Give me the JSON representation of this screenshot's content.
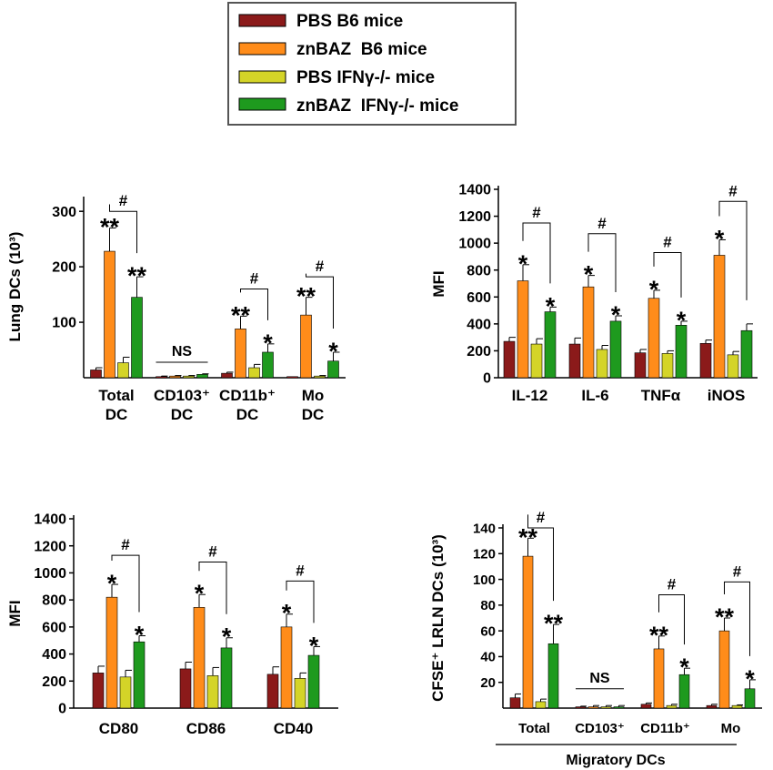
{
  "legend": {
    "entries": [
      {
        "label": "PBS B6 mice",
        "color": "#8b1a1a"
      },
      {
        "label": "znBAZ  B6 mice",
        "color": "#ff8c1a"
      },
      {
        "label": "PBS IFNγ-/- mice",
        "color": "#d4d428"
      },
      {
        "label": "znBAZ  IFNγ-/- mice",
        "color": "#1e9a1e"
      }
    ]
  },
  "chart_data": [
    {
      "id": "A",
      "type": "bar",
      "ylabel": "Lung DCs (10³)",
      "ylim": [
        0,
        320
      ],
      "yticks": [
        100,
        200,
        300
      ],
      "categories": [
        "Total DC",
        "CD103⁺ DC",
        "CD11b⁺ DC",
        "Mo DC"
      ],
      "category_lines": [
        [
          "Total",
          "DC"
        ],
        [
          "CD103⁺",
          "DC"
        ],
        [
          "CD11b⁺",
          "DC"
        ],
        [
          "Mo",
          "DC"
        ]
      ],
      "series": [
        {
          "name": "PBS B6 mice",
          "values": [
            14,
            2,
            8,
            2
          ],
          "errors": [
            4,
            1,
            2,
            0
          ]
        },
        {
          "name": "znBAZ  B6 mice",
          "values": [
            228,
            3,
            88,
            113
          ],
          "errors": [
            42,
            1,
            23,
            32
          ]
        },
        {
          "name": "PBS IFNγ-/- mice",
          "values": [
            27,
            3,
            18,
            3
          ],
          "errors": [
            10,
            1,
            6,
            1
          ]
        },
        {
          "name": "znBAZ  IFNγ-/- mice",
          "values": [
            145,
            6,
            46,
            30
          ],
          "errors": [
            37,
            1,
            15,
            16
          ]
        }
      ],
      "significance": [
        {
          "series": 1,
          "category": 0,
          "mark": "**"
        },
        {
          "series": 3,
          "category": 0,
          "mark": "**"
        },
        {
          "series": 1,
          "category": 2,
          "mark": "**"
        },
        {
          "series": 3,
          "category": 2,
          "mark": "*"
        },
        {
          "series": 1,
          "category": 3,
          "mark": "**"
        },
        {
          "series": 3,
          "category": 3,
          "mark": "*"
        }
      ],
      "brackets": [
        {
          "category": 0,
          "from": 1,
          "to": 3,
          "level": 300,
          "mark": "#"
        },
        {
          "category": 2,
          "from": 1,
          "to": 3,
          "level": 160,
          "mark": "#"
        },
        {
          "category": 3,
          "from": 1,
          "to": 3,
          "level": 182,
          "mark": "#"
        }
      ],
      "ns": [
        {
          "category": 1,
          "level": 28,
          "mark": "NS"
        }
      ]
    },
    {
      "id": "B",
      "type": "bar",
      "ylabel": "MFI",
      "ylim": [
        0,
        1400
      ],
      "yticks": [
        0,
        200,
        400,
        600,
        800,
        1000,
        1200,
        1400
      ],
      "categories": [
        "IL-12",
        "IL-6",
        "TNFα",
        "iNOS"
      ],
      "category_lines": [
        [
          "IL-12"
        ],
        [
          "IL-6"
        ],
        [
          "TNFα"
        ],
        [
          "iNOS"
        ]
      ],
      "series": [
        {
          "name": "PBS B6 mice",
          "values": [
            270,
            250,
            185,
            255
          ],
          "errors": [
            30,
            45,
            25,
            25
          ]
        },
        {
          "name": "znBAZ  B6 mice",
          "values": [
            720,
            675,
            590,
            910
          ],
          "errors": [
            120,
            85,
            60,
            115
          ]
        },
        {
          "name": "PBS IFNγ-/- mice",
          "values": [
            250,
            210,
            180,
            170
          ],
          "errors": [
            40,
            30,
            20,
            25
          ]
        },
        {
          "name": "znBAZ  IFNγ-/- mice",
          "values": [
            490,
            420,
            390,
            350
          ],
          "errors": [
            35,
            40,
            30,
            50
          ]
        }
      ],
      "significance": [
        {
          "series": 1,
          "category": 0,
          "mark": "*"
        },
        {
          "series": 3,
          "category": 0,
          "mark": "*"
        },
        {
          "series": 1,
          "category": 1,
          "mark": "*"
        },
        {
          "series": 3,
          "category": 1,
          "mark": "*"
        },
        {
          "series": 1,
          "category": 2,
          "mark": "*"
        },
        {
          "series": 3,
          "category": 2,
          "mark": "*"
        },
        {
          "series": 1,
          "category": 3,
          "mark": "*"
        }
      ],
      "brackets": [
        {
          "category": 0,
          "from": 1,
          "to": 3,
          "level": 1150,
          "mark": "#"
        },
        {
          "category": 1,
          "from": 1,
          "to": 3,
          "level": 1070,
          "mark": "#"
        },
        {
          "category": 2,
          "from": 1,
          "to": 3,
          "level": 930,
          "mark": "#"
        },
        {
          "category": 3,
          "from": 1,
          "to": 3,
          "level": 1310,
          "mark": "#"
        }
      ]
    },
    {
      "id": "C",
      "type": "bar",
      "ylabel": "MFI",
      "ylim": [
        0,
        1400
      ],
      "yticks": [
        0,
        200,
        400,
        600,
        800,
        1000,
        1200,
        1400
      ],
      "categories": [
        "CD80",
        "CD86",
        "CD40"
      ],
      "category_lines": [
        [
          "CD80"
        ],
        [
          "CD86"
        ],
        [
          "CD40"
        ]
      ],
      "series": [
        {
          "name": "PBS B6 mice",
          "values": [
            260,
            290,
            250
          ],
          "errors": [
            50,
            50,
            55
          ]
        },
        {
          "name": "znBAZ  B6 mice",
          "values": [
            820,
            745,
            600
          ],
          "errors": [
            95,
            95,
            95
          ]
        },
        {
          "name": "PBS IFNγ-/- mice",
          "values": [
            230,
            240,
            220
          ],
          "errors": [
            50,
            60,
            40
          ]
        },
        {
          "name": "znBAZ  IFNγ-/- mice",
          "values": [
            490,
            445,
            390
          ],
          "errors": [
            45,
            75,
            65
          ]
        }
      ],
      "significance": [
        {
          "series": 1,
          "category": 0,
          "mark": "*"
        },
        {
          "series": 3,
          "category": 0,
          "mark": "*"
        },
        {
          "series": 1,
          "category": 1,
          "mark": "*"
        },
        {
          "series": 3,
          "category": 1,
          "mark": "*"
        },
        {
          "series": 1,
          "category": 2,
          "mark": "*"
        },
        {
          "series": 3,
          "category": 2,
          "mark": "*"
        }
      ],
      "brackets": [
        {
          "category": 0,
          "from": 1,
          "to": 3,
          "level": 1130,
          "mark": "#"
        },
        {
          "category": 1,
          "from": 1,
          "to": 3,
          "level": 1080,
          "mark": "#"
        },
        {
          "category": 2,
          "from": 1,
          "to": 3,
          "level": 940,
          "mark": "#"
        }
      ]
    },
    {
      "id": "D",
      "type": "bar",
      "ylabel": "CFSE⁺ LRLN DCs (10³)",
      "ylim": [
        0,
        140
      ],
      "yticks": [
        20,
        40,
        60,
        80,
        100,
        120,
        140
      ],
      "categories": [
        "Total",
        "CD103⁺",
        "CD11b⁺",
        "Mo"
      ],
      "category_lines": [
        [
          "Total"
        ],
        [
          "CD103⁺"
        ],
        [
          "CD11b⁺"
        ],
        [
          "Mo"
        ]
      ],
      "group_label": "Migratory DCs",
      "series": [
        {
          "name": "PBS B6 mice",
          "values": [
            8,
            1,
            3,
            2
          ],
          "errors": [
            3,
            0.5,
            1,
            1
          ]
        },
        {
          "name": "znBAZ  B6 mice",
          "values": [
            118,
            1,
            46,
            60
          ],
          "errors": [
            14,
            1,
            10,
            10
          ]
        },
        {
          "name": "PBS IFNγ-/- mice",
          "values": [
            5,
            1,
            2,
            2
          ],
          "errors": [
            2,
            1,
            1,
            0.5
          ]
        },
        {
          "name": "znBAZ  IFNγ-/- mice",
          "values": [
            50,
            1,
            26,
            15
          ],
          "errors": [
            15,
            1,
            5,
            7
          ]
        }
      ],
      "significance": [
        {
          "series": 1,
          "category": 0,
          "mark": "**"
        },
        {
          "series": 3,
          "category": 0,
          "mark": "**"
        },
        {
          "series": 1,
          "category": 2,
          "mark": "**"
        },
        {
          "series": 3,
          "category": 2,
          "mark": "*"
        },
        {
          "series": 1,
          "category": 3,
          "mark": "**"
        },
        {
          "series": 3,
          "category": 3,
          "mark": "*"
        }
      ],
      "brackets": [
        {
          "category": 0,
          "from": 1,
          "to": 3,
          "level": 140,
          "mark": "#"
        },
        {
          "category": 2,
          "from": 1,
          "to": 3,
          "level": 88,
          "mark": "#"
        },
        {
          "category": 3,
          "from": 1,
          "to": 3,
          "level": 98,
          "mark": "#"
        }
      ],
      "ns": [
        {
          "category": 1,
          "level": 15,
          "mark": "NS"
        }
      ]
    }
  ]
}
